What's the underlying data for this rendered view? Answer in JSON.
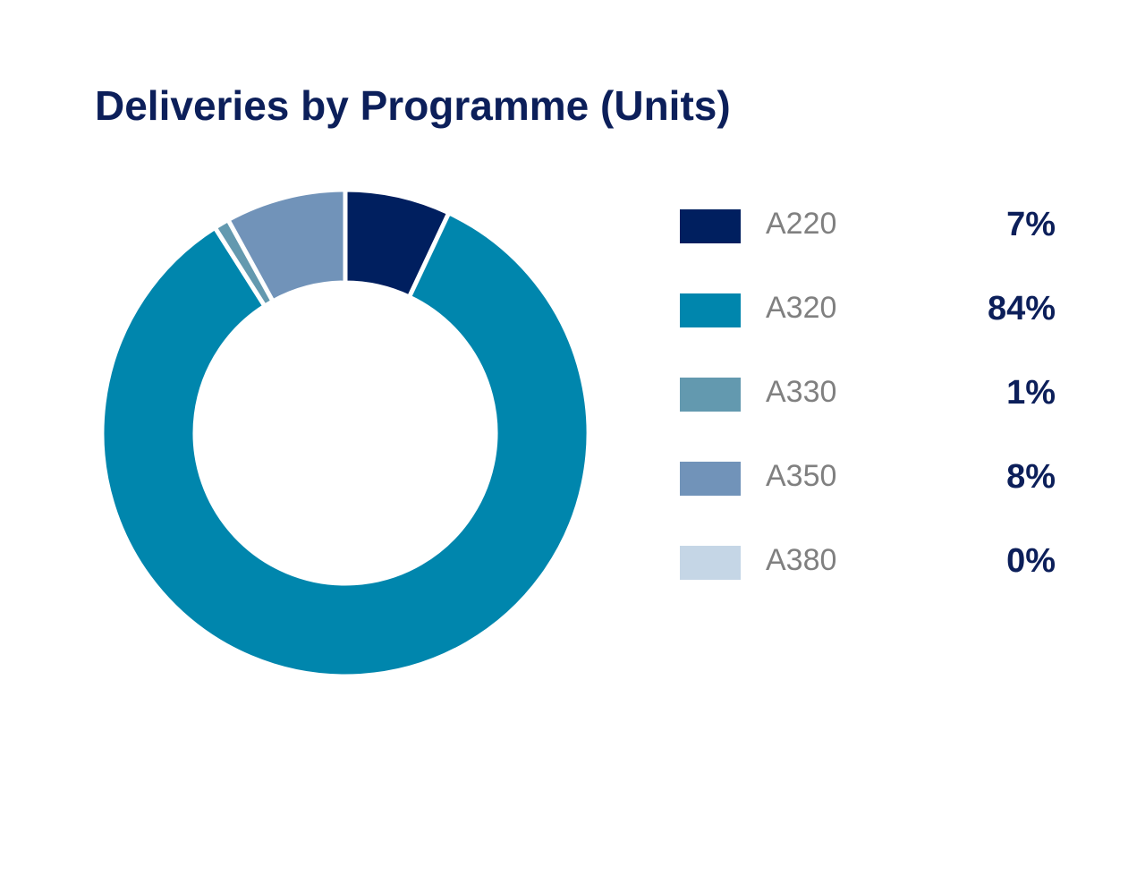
{
  "chart_data": {
    "type": "pie",
    "donut": true,
    "title": "Deliveries by Programme (Units)",
    "categories": [
      "A220",
      "A320",
      "A330",
      "A350",
      "A380"
    ],
    "values": [
      7,
      84,
      1,
      8,
      0
    ],
    "value_labels": [
      "7%",
      "84%",
      "1%",
      "8%",
      "0%"
    ],
    "colors": [
      "#001f5f",
      "#0086ad",
      "#6399af",
      "#7193b9",
      "#c5d6e6"
    ],
    "legend": "right",
    "gap_color": "#ffffff"
  }
}
